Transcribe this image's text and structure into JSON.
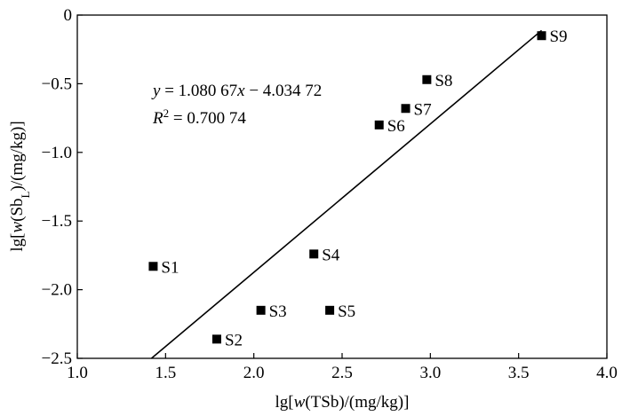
{
  "chart_data": {
    "type": "scatter",
    "xlabel_parts": [
      "lg[",
      "w",
      "(TSb)/(mg/kg)]"
    ],
    "ylabel_parts": [
      "lg[",
      "w",
      "(Sb",
      "L",
      ")/(mg/kg)]"
    ],
    "xlim": [
      1.0,
      4.0
    ],
    "ylim": [
      -2.5,
      0
    ],
    "x_ticks": [
      1.0,
      1.5,
      2.0,
      2.5,
      3.0,
      3.5,
      4.0
    ],
    "x_tick_labels": [
      "1.0",
      "1.5",
      "2.0",
      "2.5",
      "3.0",
      "3.5",
      "4.0"
    ],
    "y_ticks": [
      0,
      -0.5,
      -1.0,
      -1.5,
      -2.0,
      -2.5
    ],
    "y_tick_labels": [
      "0",
      "−0.5",
      "−1.0",
      "−1.5",
      "−2.0",
      "−2.5"
    ],
    "grid": false,
    "points": [
      {
        "label": "S1",
        "x": 1.43,
        "y": -1.83
      },
      {
        "label": "S2",
        "x": 1.79,
        "y": -2.36
      },
      {
        "label": "S3",
        "x": 2.04,
        "y": -2.15
      },
      {
        "label": "S4",
        "x": 2.34,
        "y": -1.74
      },
      {
        "label": "S5",
        "x": 2.43,
        "y": -2.15
      },
      {
        "label": "S6",
        "x": 2.71,
        "y": -0.8
      },
      {
        "label": "S7",
        "x": 2.86,
        "y": -0.68
      },
      {
        "label": "S8",
        "x": 2.98,
        "y": -0.47
      },
      {
        "label": "S9",
        "x": 3.63,
        "y": -0.15
      }
    ],
    "fit_line": {
      "slope": 1.08067,
      "intercept": -4.03472,
      "x_start": 1.42,
      "x_end": 3.63
    },
    "annotation": {
      "equation_parts": [
        "y",
        " = 1.080 67",
        "x",
        " − 4.034 72"
      ],
      "r2_parts": [
        "R",
        "2",
        " = 0.700 74"
      ]
    }
  }
}
